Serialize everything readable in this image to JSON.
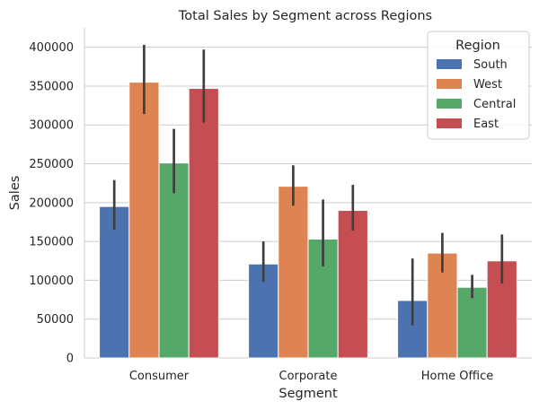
{
  "chart_data": {
    "type": "bar",
    "title": "Total Sales by Segment across Regions",
    "xlabel": "Segment",
    "ylabel": "Sales",
    "ylim": [
      0,
      425000
    ],
    "yticks": [
      0,
      50000,
      100000,
      150000,
      200000,
      250000,
      300000,
      350000,
      400000
    ],
    "grid": true,
    "categories": [
      "Consumer",
      "Corporate",
      "Home Office"
    ],
    "legend": {
      "title": "Region",
      "placement": "top-right"
    },
    "series": [
      {
        "name": "South",
        "color": "#4C72B0",
        "values": [
          195000,
          121000,
          74000
        ],
        "error_low": [
          165000,
          98000,
          42000
        ],
        "error_high": [
          229000,
          150000,
          128000
        ]
      },
      {
        "name": "West",
        "color": "#DD8452",
        "values": [
          355000,
          221000,
          135000
        ],
        "error_low": [
          314000,
          196000,
          110000
        ],
        "error_high": [
          403000,
          248000,
          161000
        ]
      },
      {
        "name": "Central",
        "color": "#55A868",
        "values": [
          251000,
          153000,
          91000
        ],
        "error_low": [
          212000,
          118000,
          77000
        ],
        "error_high": [
          295000,
          204000,
          107000
        ]
      },
      {
        "name": "East",
        "color": "#C44E52",
        "values": [
          347000,
          190000,
          125000
        ],
        "error_low": [
          303000,
          164000,
          96000
        ],
        "error_high": [
          397000,
          223000,
          159000
        ]
      }
    ]
  }
}
